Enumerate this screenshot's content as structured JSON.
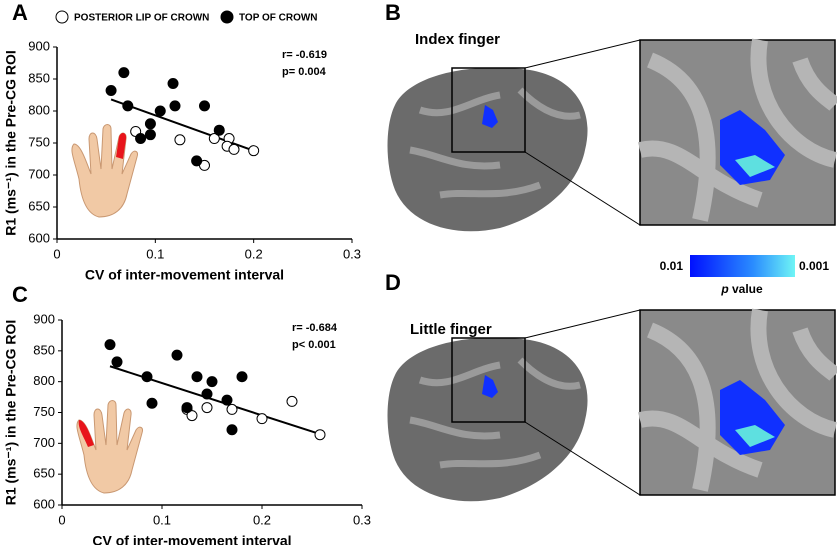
{
  "chart_data": [
    {
      "type": "scatter",
      "panel": "A",
      "xlabel": "CV of inter-movement interval",
      "ylabel": "R1 (ms⁻¹) in the Pre-CG ROI",
      "xlim": [
        0,
        0.3
      ],
      "xticks": [
        0,
        0.1,
        0.2,
        0.3
      ],
      "ylim": [
        600,
        900
      ],
      "yticks": [
        600,
        650,
        700,
        750,
        800,
        850,
        900
      ],
      "legend": true,
      "finger": "index",
      "annotations": [
        "r= -0.619",
        "p= 0.004"
      ],
      "series": [
        {
          "name": "POSTERIOR LIP OF CROWN",
          "marker": "open",
          "color": "#000000",
          "x": [
            0.08,
            0.125,
            0.16,
            0.175,
            0.173,
            0.18,
            0.2,
            0.15
          ],
          "values": [
            768,
            755,
            757,
            757,
            745,
            740,
            738,
            715
          ]
        },
        {
          "name": "TOP OF CROWN",
          "marker": "filled",
          "color": "#000000",
          "x": [
            0.055,
            0.068,
            0.072,
            0.085,
            0.095,
            0.095,
            0.105,
            0.118,
            0.12,
            0.142,
            0.15,
            0.165
          ],
          "values": [
            832,
            860,
            808,
            757,
            763,
            780,
            800,
            843,
            808,
            722,
            808,
            770
          ]
        }
      ],
      "trendline": {
        "x": [
          0.055,
          0.2
        ],
        "values": [
          818,
          738
        ]
      }
    },
    {
      "type": "scatter",
      "panel": "C",
      "xlabel": "CV of inter-movement interval",
      "ylabel": "R1 (ms⁻¹) in the Pre-CG ROI",
      "xlim": [
        0,
        0.3
      ],
      "xticks": [
        0,
        0.1,
        0.2,
        0.3
      ],
      "ylim": [
        600,
        900
      ],
      "yticks": [
        600,
        650,
        700,
        750,
        800,
        850,
        900
      ],
      "legend": false,
      "finger": "little",
      "annotations": [
        "r= -0.684",
        "p< 0.001"
      ],
      "series": [
        {
          "marker": "open",
          "color": "#000000",
          "x": [
            0.125,
            0.13,
            0.145,
            0.17,
            0.2,
            0.23,
            0.258
          ],
          "values": [
            755,
            745,
            758,
            755,
            740,
            768,
            714
          ]
        },
        {
          "marker": "filled",
          "color": "#000000",
          "x": [
            0.048,
            0.055,
            0.085,
            0.09,
            0.115,
            0.125,
            0.135,
            0.15,
            0.145,
            0.165,
            0.17,
            0.18
          ],
          "values": [
            860,
            832,
            808,
            765,
            843,
            758,
            808,
            800,
            780,
            770,
            722,
            808
          ]
        }
      ],
      "trendline": {
        "x": [
          0.048,
          0.258
        ],
        "values": [
          825,
          715
        ]
      }
    }
  ],
  "panels": [
    {
      "label": "B",
      "title": "Index finger"
    },
    {
      "label": "D",
      "title": "Little finger"
    }
  ],
  "colorbar": {
    "min": 0.01,
    "max": 0.001,
    "title_italic": "p",
    "title": "value"
  }
}
